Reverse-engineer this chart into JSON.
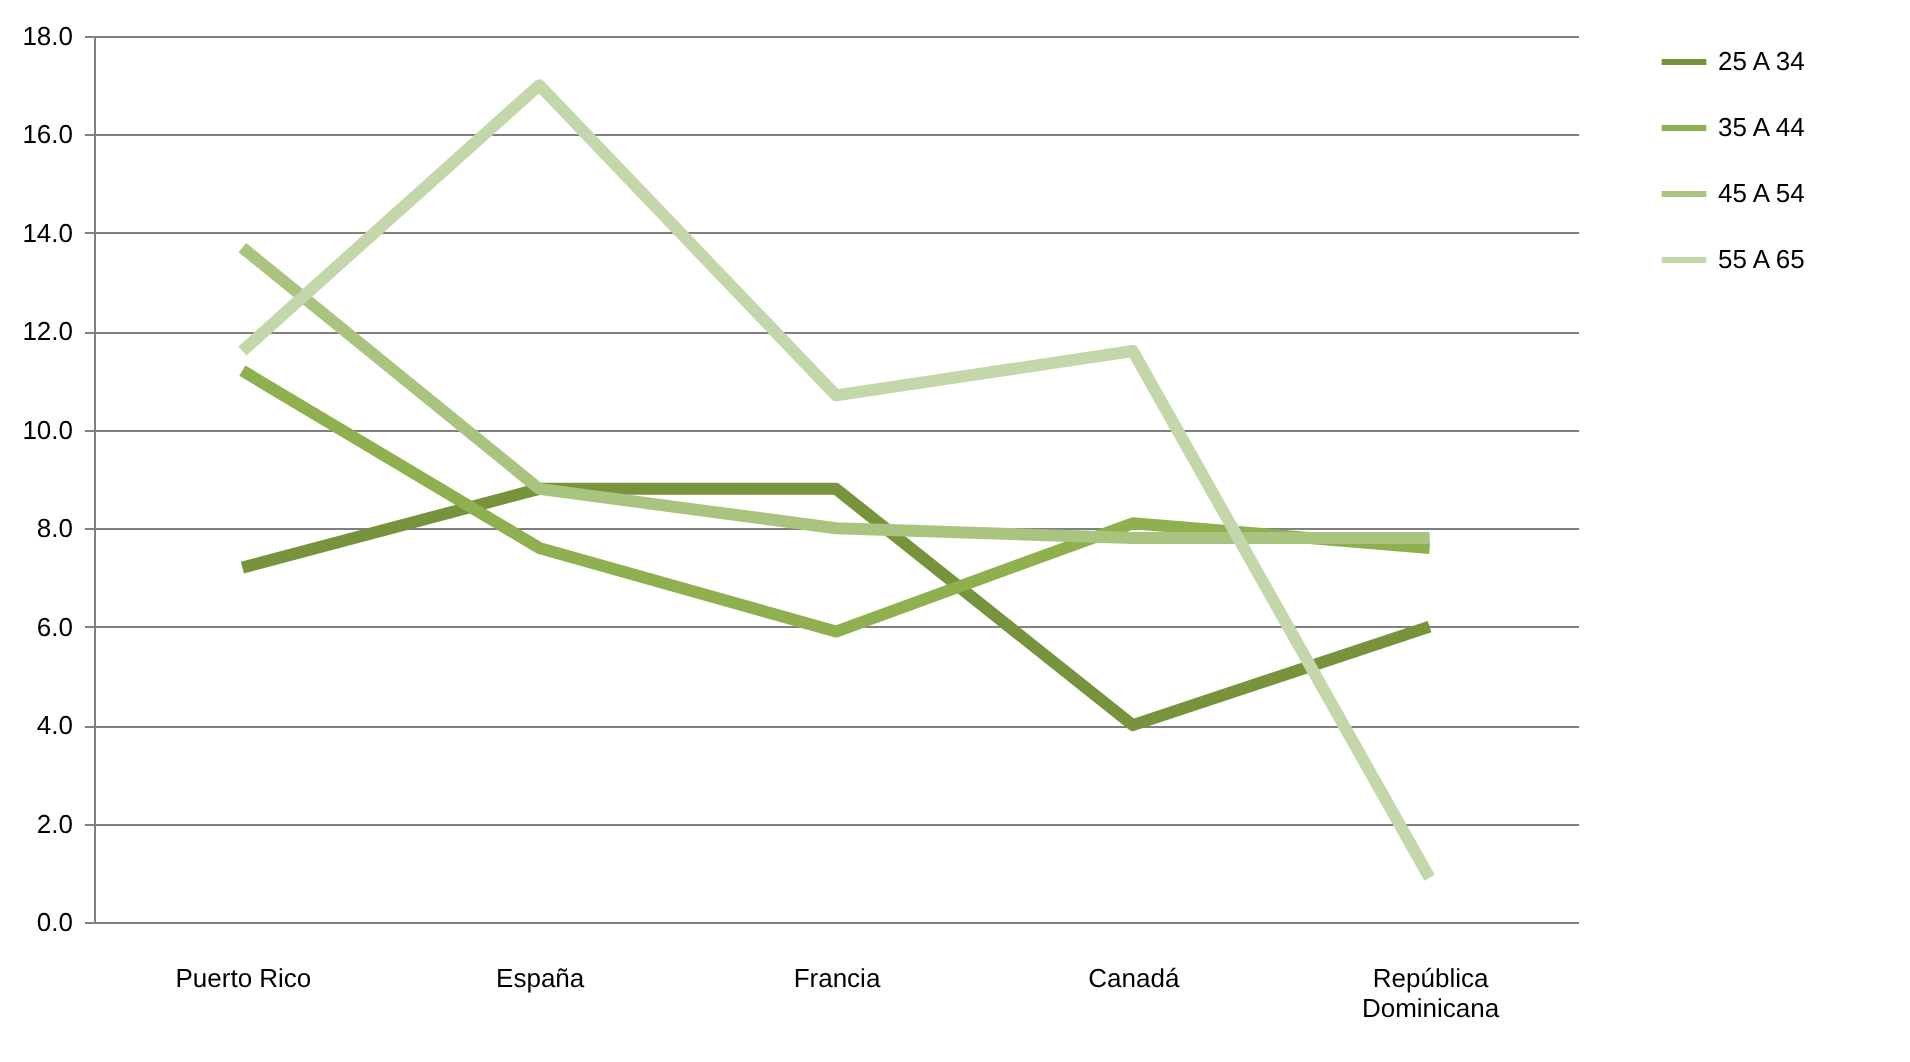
{
  "chart_data": {
    "type": "line",
    "categories": [
      "Puerto Rico",
      "España",
      "Francia",
      "Canadá",
      "República Dominicana"
    ],
    "series": [
      {
        "name": "25 A 34",
        "color": "#77933c",
        "values": [
          7.2,
          8.8,
          8.8,
          4.0,
          6.0
        ]
      },
      {
        "name": "35 A 44",
        "color": "#8eb04e",
        "values": [
          11.2,
          7.6,
          5.9,
          8.1,
          7.6
        ]
      },
      {
        "name": "45 A 54",
        "color": "#a9c47f",
        "values": [
          13.7,
          8.8,
          8.0,
          7.8,
          7.8
        ]
      },
      {
        "name": "55 A 65",
        "color": "#c4d7aa",
        "values": [
          11.6,
          17.0,
          10.7,
          11.6,
          0.9
        ]
      }
    ],
    "ylim": [
      0,
      18
    ],
    "yticks": [
      {
        "value": 0,
        "label": "0.0"
      },
      {
        "value": 2,
        "label": "2.0"
      },
      {
        "value": 4,
        "label": "4.0"
      },
      {
        "value": 6,
        "label": "6.0"
      },
      {
        "value": 8,
        "label": "8.0"
      },
      {
        "value": 10,
        "label": "10.0"
      },
      {
        "value": 12,
        "label": "12.0"
      },
      {
        "value": 14,
        "label": "14.0"
      },
      {
        "value": 16,
        "label": "16.0"
      },
      {
        "value": 18,
        "label": "18.0"
      }
    ],
    "grid": "y",
    "legend": "right",
    "marker": "none",
    "line_style": "solid"
  }
}
